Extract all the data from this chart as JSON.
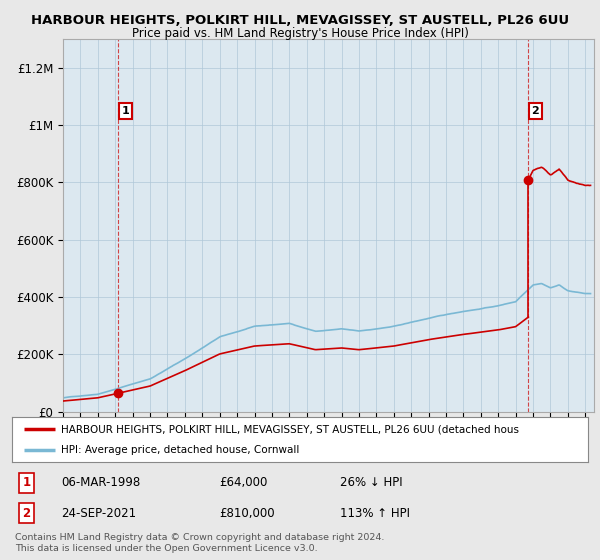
{
  "title_line1": "HARBOUR HEIGHTS, POLKIRT HILL, MEVAGISSEY, ST AUSTELL, PL26 6UU",
  "title_line2": "Price paid vs. HM Land Registry's House Price Index (HPI)",
  "ylabel_ticks": [
    "£0",
    "£200K",
    "£400K",
    "£600K",
    "£800K",
    "£1M",
    "£1.2M"
  ],
  "ytick_values": [
    0,
    200000,
    400000,
    600000,
    800000,
    1000000,
    1200000
  ],
  "ylim": [
    0,
    1300000
  ],
  "xlim_start": 1995.0,
  "xlim_end": 2025.5,
  "hpi_color": "#7ab8d4",
  "price_color": "#cc0000",
  "background_color": "#e8e8e8",
  "plot_bg_color": "#dce8f0",
  "transaction1_x": 1998.18,
  "transaction1_y": 64000,
  "transaction1_label": "1",
  "transaction2_x": 2021.73,
  "transaction2_y": 810000,
  "transaction2_label": "2",
  "legend_line1": "HARBOUR HEIGHTS, POLKIRT HILL, MEVAGISSEY, ST AUSTELL, PL26 6UU (detached hous",
  "legend_line2": "HPI: Average price, detached house, Cornwall",
  "annotation1_date": "06-MAR-1998",
  "annotation1_price": "£64,000",
  "annotation1_hpi": "26% ↓ HPI",
  "annotation2_date": "24-SEP-2021",
  "annotation2_price": "£810,000",
  "annotation2_hpi": "113% ↑ HPI",
  "footer": "Contains HM Land Registry data © Crown copyright and database right 2024.\nThis data is licensed under the Open Government Licence v3.0."
}
